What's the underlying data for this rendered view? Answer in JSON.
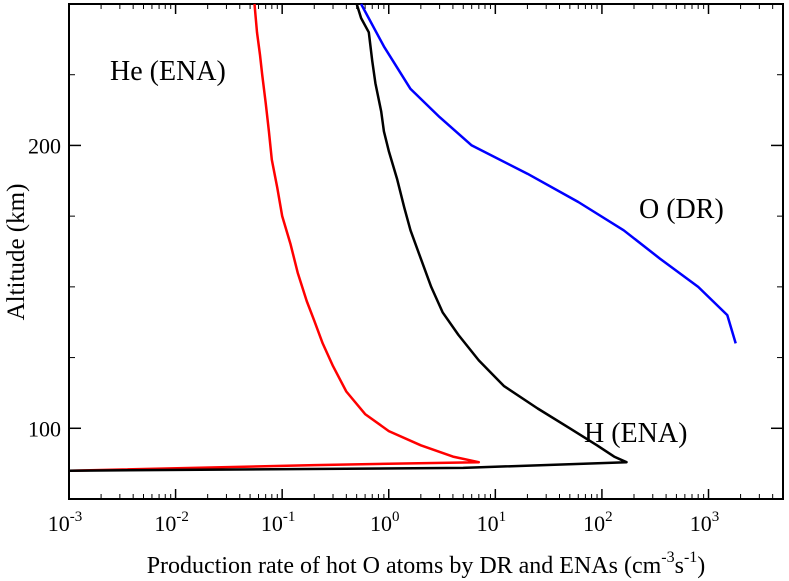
{
  "chart_data": {
    "type": "line",
    "xlabel": "Production rate of hot O atoms by DR and ENAs (cm",
    "xlabel_sup1": "-3",
    "xlabel_mid": "s",
    "xlabel_sup2": "-1",
    "xlabel_end": ")",
    "ylabel": "Altitude (km)",
    "x_scale": "log",
    "xlim": [
      0.001,
      5000
    ],
    "ylim": [
      75,
      250
    ],
    "x_ticks": [
      {
        "base": "10",
        "exp": "-3",
        "value": 0.001
      },
      {
        "base": "10",
        "exp": "-2",
        "value": 0.01
      },
      {
        "base": "10",
        "exp": "-1",
        "value": 0.1
      },
      {
        "base": "10",
        "exp": "0",
        "value": 1
      },
      {
        "base": "10",
        "exp": "1",
        "value": 10
      },
      {
        "base": "10",
        "exp": "2",
        "value": 100
      },
      {
        "base": "10",
        "exp": "3",
        "value": 1000
      }
    ],
    "y_ticks": [
      {
        "label": "100",
        "value": 100
      },
      {
        "label": "200",
        "value": 200
      }
    ],
    "y_minor_ticks": [
      125,
      150,
      175,
      225
    ],
    "grid": false,
    "series": [
      {
        "name": "He (ENA)",
        "color": "#ff0000",
        "points": [
          [
            0.055,
            250
          ],
          [
            0.058,
            240
          ],
          [
            0.062,
            232
          ],
          [
            0.065,
            225
          ],
          [
            0.07,
            215
          ],
          [
            0.075,
            205
          ],
          [
            0.08,
            195
          ],
          [
            0.09,
            185
          ],
          [
            0.1,
            175
          ],
          [
            0.12,
            165
          ],
          [
            0.14,
            155
          ],
          [
            0.17,
            145
          ],
          [
            0.2,
            138
          ],
          [
            0.24,
            130
          ],
          [
            0.3,
            122
          ],
          [
            0.4,
            113
          ],
          [
            0.6,
            105
          ],
          [
            1.0,
            99
          ],
          [
            2.0,
            94
          ],
          [
            4.0,
            90
          ],
          [
            7.0,
            88
          ],
          [
            0.2,
            87
          ],
          [
            0.001,
            85
          ]
        ]
      },
      {
        "name": "H (ENA)",
        "color": "#000000",
        "points": [
          [
            0.5,
            250
          ],
          [
            0.55,
            245
          ],
          [
            0.65,
            240
          ],
          [
            0.7,
            230
          ],
          [
            0.75,
            222
          ],
          [
            0.85,
            212
          ],
          [
            0.9,
            205
          ],
          [
            1.0,
            198
          ],
          [
            1.2,
            188
          ],
          [
            1.4,
            178
          ],
          [
            1.6,
            170
          ],
          [
            2.0,
            160
          ],
          [
            2.5,
            150
          ],
          [
            3.2,
            141
          ],
          [
            4.5,
            133
          ],
          [
            7.0,
            124
          ],
          [
            12.0,
            115
          ],
          [
            25.0,
            107
          ],
          [
            50.0,
            100
          ],
          [
            90.0,
            94
          ],
          [
            130.0,
            90
          ],
          [
            170.0,
            88
          ],
          [
            5.0,
            86
          ],
          [
            0.001,
            85
          ]
        ]
      },
      {
        "name": "O (DR)",
        "color": "#0000ff",
        "points": [
          [
            0.55,
            250
          ],
          [
            0.9,
            235
          ],
          [
            1.6,
            220
          ],
          [
            3.0,
            210
          ],
          [
            6.0,
            200
          ],
          [
            20.0,
            190
          ],
          [
            60.0,
            180
          ],
          [
            160.0,
            170
          ],
          [
            350.0,
            160
          ],
          [
            800.0,
            150
          ],
          [
            1500.0,
            140
          ],
          [
            1800.0,
            130
          ]
        ]
      }
    ],
    "annotations": [
      {
        "text": "He (ENA)",
        "color": "#ff0000",
        "series": "He (ENA)"
      },
      {
        "text": "H (ENA)",
        "color": "#000000",
        "series": "H (ENA)"
      },
      {
        "text": "O (DR)",
        "color": "#0000ff",
        "series": "O (DR)"
      }
    ]
  }
}
